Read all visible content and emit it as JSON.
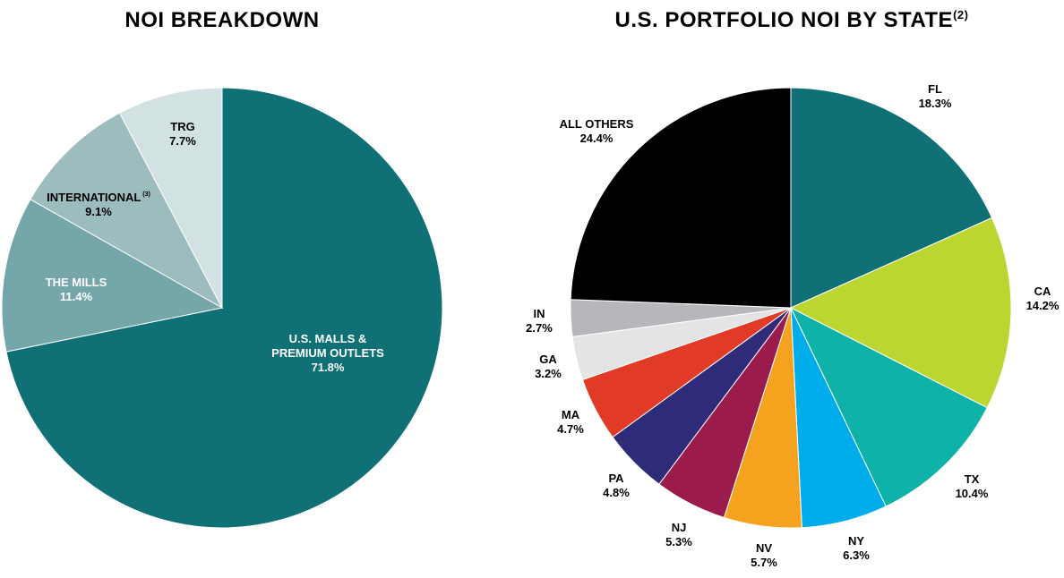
{
  "chart_data": [
    {
      "type": "pie",
      "title": "NOI BREAKDOWN",
      "start": "top",
      "direction": "clockwise",
      "slices": [
        {
          "label": "U.S. MALLS & PREMIUM OUTLETS",
          "value": 71.8,
          "value_label": "71.8%",
          "color": "#0f7076",
          "label_color": "#ffffff"
        },
        {
          "label": "THE MILLS",
          "value": 11.4,
          "value_label": "11.4%",
          "color": "#75a6a9",
          "label_color": "#ffffff"
        },
        {
          "label": "INTERNATIONAL",
          "label_sup": "(3)",
          "value": 9.1,
          "value_label": "9.1%",
          "color": "#9dbcbd",
          "label_color": "#000000"
        },
        {
          "label": "TRG",
          "value": 7.7,
          "value_label": "7.7%",
          "color": "#d2e2e2",
          "label_color": "#000000"
        }
      ]
    },
    {
      "type": "pie",
      "title": "U.S. PORTFOLIO NOI BY STATE",
      "title_sup": "(2)",
      "start": "top",
      "direction": "clockwise",
      "slices": [
        {
          "label": "FL",
          "value": 18.3,
          "value_label": "18.3%",
          "color": "#0f7076",
          "label_color": "#000000"
        },
        {
          "label": "CA",
          "value": 14.2,
          "value_label": "14.2%",
          "color": "#bcd631",
          "label_color": "#000000"
        },
        {
          "label": "TX",
          "value": 10.4,
          "value_label": "10.4%",
          "color": "#0fb2a8",
          "label_color": "#000000"
        },
        {
          "label": "NY",
          "value": 6.3,
          "value_label": "6.3%",
          "color": "#00adeb",
          "label_color": "#000000"
        },
        {
          "label": "NV",
          "value": 5.7,
          "value_label": "5.7%",
          "color": "#f5a31e",
          "label_color": "#000000"
        },
        {
          "label": "NJ",
          "value": 5.3,
          "value_label": "5.3%",
          "color": "#9b1b4d",
          "label_color": "#000000"
        },
        {
          "label": "PA",
          "value": 4.8,
          "value_label": "4.8%",
          "color": "#2e2c78",
          "label_color": "#000000"
        },
        {
          "label": "MA",
          "value": 4.7,
          "value_label": "4.7%",
          "color": "#e13b27",
          "label_color": "#000000"
        },
        {
          "label": "GA",
          "value": 3.2,
          "value_label": "3.2%",
          "color": "#e4e4e6",
          "label_color": "#000000"
        },
        {
          "label": "IN",
          "value": 2.7,
          "value_label": "2.7%",
          "color": "#b6b7ba",
          "label_color": "#000000"
        },
        {
          "label": "ALL OTHERS",
          "value": 24.4,
          "value_label": "24.4%",
          "color": "#000000",
          "label_color": "#000000"
        }
      ]
    }
  ]
}
